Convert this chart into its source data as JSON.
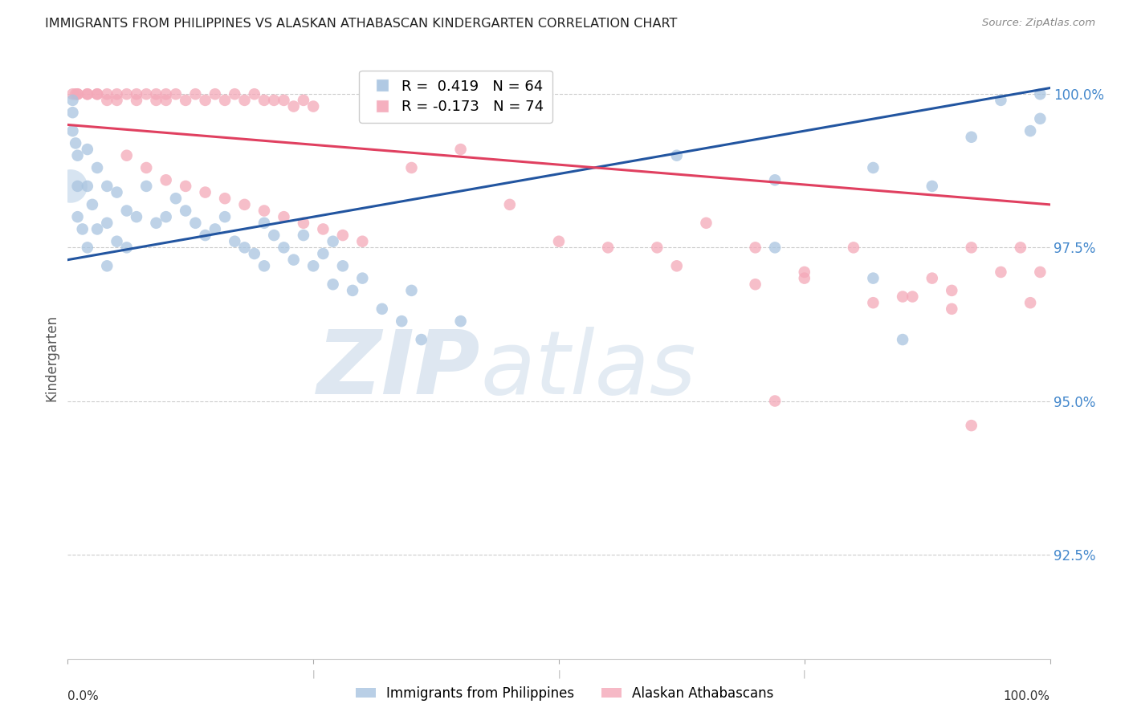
{
  "title": "IMMIGRANTS FROM PHILIPPINES VS ALASKAN ATHABASCAN KINDERGARTEN CORRELATION CHART",
  "source": "Source: ZipAtlas.com",
  "ylabel": "Kindergarten",
  "legend_blue_label": "Immigrants from Philippines",
  "legend_pink_label": "Alaskan Athabascans",
  "R_blue": 0.419,
  "N_blue": 64,
  "R_pink": -0.173,
  "N_pink": 74,
  "blue_color": "#a8c4e0",
  "pink_color": "#f4a8b8",
  "blue_line_color": "#2255a0",
  "pink_line_color": "#e04060",
  "right_ytick_color": "#4488cc",
  "xmin": 0.0,
  "xmax": 1.0,
  "ymin": 0.908,
  "ymax": 1.006,
  "right_yticks": [
    1.0,
    0.975,
    0.95,
    0.925
  ],
  "right_ytick_labels": [
    "100.0%",
    "97.5%",
    "95.0%",
    "92.5%"
  ],
  "blue_line_x": [
    0.0,
    1.0
  ],
  "blue_line_y": [
    0.973,
    1.001
  ],
  "pink_line_x": [
    0.0,
    1.0
  ],
  "pink_line_y": [
    0.995,
    0.982
  ],
  "blue_x": [
    0.005,
    0.005,
    0.005,
    0.008,
    0.01,
    0.01,
    0.01,
    0.015,
    0.02,
    0.02,
    0.02,
    0.025,
    0.03,
    0.03,
    0.04,
    0.04,
    0.04,
    0.05,
    0.05,
    0.06,
    0.06,
    0.07,
    0.08,
    0.09,
    0.1,
    0.11,
    0.12,
    0.13,
    0.14,
    0.15,
    0.16,
    0.17,
    0.18,
    0.19,
    0.2,
    0.2,
    0.21,
    0.22,
    0.23,
    0.24,
    0.25,
    0.26,
    0.27,
    0.27,
    0.28,
    0.29,
    0.3,
    0.32,
    0.34,
    0.35,
    0.36,
    0.4,
    0.62,
    0.72,
    0.82,
    0.88,
    0.92,
    0.95,
    0.98,
    0.99,
    0.72,
    0.82,
    0.85,
    0.99
  ],
  "blue_y": [
    0.999,
    0.997,
    0.994,
    0.992,
    0.99,
    0.985,
    0.98,
    0.978,
    0.991,
    0.985,
    0.975,
    0.982,
    0.988,
    0.978,
    0.985,
    0.979,
    0.972,
    0.984,
    0.976,
    0.981,
    0.975,
    0.98,
    0.985,
    0.979,
    0.98,
    0.983,
    0.981,
    0.979,
    0.977,
    0.978,
    0.98,
    0.976,
    0.975,
    0.974,
    0.979,
    0.972,
    0.977,
    0.975,
    0.973,
    0.977,
    0.972,
    0.974,
    0.976,
    0.969,
    0.972,
    0.968,
    0.97,
    0.965,
    0.963,
    0.968,
    0.96,
    0.963,
    0.99,
    0.986,
    0.988,
    0.985,
    0.993,
    0.999,
    0.994,
    1.0,
    0.975,
    0.97,
    0.96,
    0.996
  ],
  "blue_large_x": [
    0.003
  ],
  "blue_large_y": [
    0.985
  ],
  "pink_x": [
    0.005,
    0.008,
    0.01,
    0.01,
    0.02,
    0.02,
    0.03,
    0.03,
    0.04,
    0.04,
    0.05,
    0.05,
    0.06,
    0.07,
    0.07,
    0.08,
    0.09,
    0.09,
    0.1,
    0.1,
    0.11,
    0.12,
    0.13,
    0.14,
    0.15,
    0.16,
    0.17,
    0.18,
    0.19,
    0.2,
    0.21,
    0.22,
    0.23,
    0.24,
    0.25,
    0.06,
    0.08,
    0.1,
    0.12,
    0.14,
    0.16,
    0.18,
    0.2,
    0.22,
    0.24,
    0.26,
    0.28,
    0.3,
    0.35,
    0.4,
    0.45,
    0.5,
    0.55,
    0.6,
    0.65,
    0.7,
    0.75,
    0.8,
    0.85,
    0.88,
    0.9,
    0.92,
    0.95,
    0.97,
    0.98,
    0.99,
    0.62,
    0.7,
    0.75,
    0.82,
    0.86,
    0.9,
    0.72,
    0.92
  ],
  "pink_y": [
    1.0,
    1.0,
    1.0,
    1.0,
    1.0,
    1.0,
    1.0,
    1.0,
    1.0,
    0.999,
    1.0,
    0.999,
    1.0,
    1.0,
    0.999,
    1.0,
    1.0,
    0.999,
    1.0,
    0.999,
    1.0,
    0.999,
    1.0,
    0.999,
    1.0,
    0.999,
    1.0,
    0.999,
    1.0,
    0.999,
    0.999,
    0.999,
    0.998,
    0.999,
    0.998,
    0.99,
    0.988,
    0.986,
    0.985,
    0.984,
    0.983,
    0.982,
    0.981,
    0.98,
    0.979,
    0.978,
    0.977,
    0.976,
    0.988,
    0.991,
    0.982,
    0.976,
    0.975,
    0.975,
    0.979,
    0.975,
    0.971,
    0.975,
    0.967,
    0.97,
    0.968,
    0.975,
    0.971,
    0.975,
    0.966,
    0.971,
    0.972,
    0.969,
    0.97,
    0.966,
    0.967,
    0.965,
    0.95,
    0.946
  ]
}
